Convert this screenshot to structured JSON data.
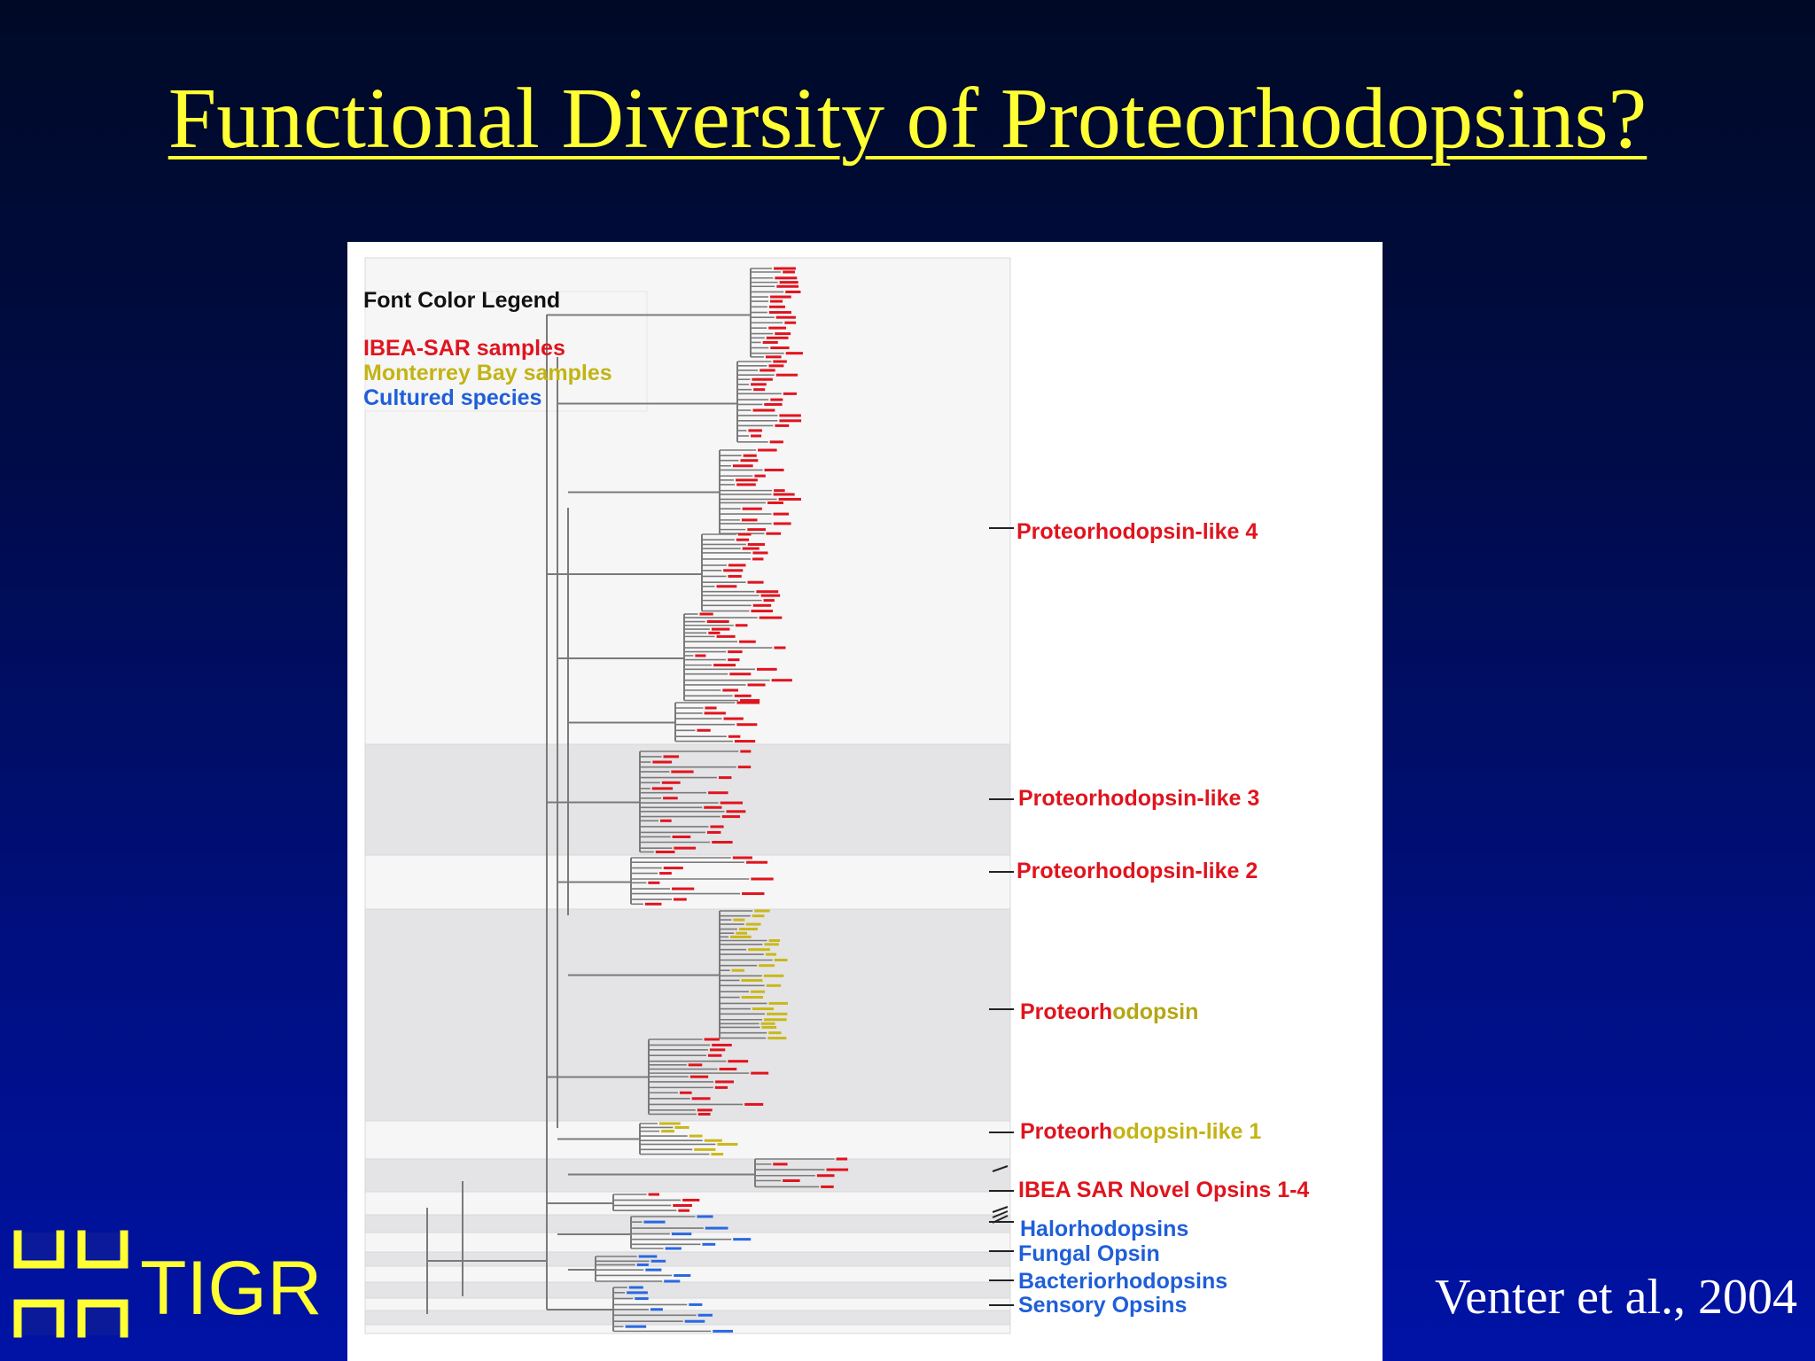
{
  "slide": {
    "title": "Functional Diversity of Proteorhodopsins?",
    "citation": "Venter et al., 2004",
    "logo_text": "TIGR"
  },
  "legend": {
    "title": "Font Color Legend",
    "items": [
      {
        "label": "IBEA-SAR samples",
        "color": "#e0141e"
      },
      {
        "label": "Monterrey Bay samples",
        "color": "#c2b414"
      },
      {
        "label": "Cultured species",
        "color": "#1f5fd8"
      }
    ]
  },
  "clades": [
    {
      "id": "pr-like-4",
      "parts": [
        {
          "text": "Proteorhodopsin-like 4",
          "color": "#e0141e"
        }
      ]
    },
    {
      "id": "pr-like-3",
      "parts": [
        {
          "text": "Proteorhodopsin-like 3",
          "color": "#e0141e"
        }
      ]
    },
    {
      "id": "pr-like-2",
      "parts": [
        {
          "text": "Proteorhodopsin-like 2",
          "color": "#e0141e"
        }
      ]
    },
    {
      "id": "proteorhodopsin",
      "parts": [
        {
          "text": "Proteorh",
          "color": "#e0141e"
        },
        {
          "text": "odopsin",
          "color": "#b5a614"
        }
      ]
    },
    {
      "id": "pr-like-1",
      "parts": [
        {
          "text": "Proteorh",
          "color": "#e0141e"
        },
        {
          "text": "odopsin-like 1",
          "color": "#c2b414"
        }
      ]
    },
    {
      "id": "novel-opsins",
      "parts": [
        {
          "text": "IBEA SAR Novel Opsins 1-4",
          "color": "#e0141e"
        }
      ]
    },
    {
      "id": "halorhodopsins",
      "parts": [
        {
          "text": "Halorhodopsins",
          "color": "#1f5fd8"
        }
      ]
    },
    {
      "id": "fungal-opsin",
      "parts": [
        {
          "text": "Fungal Opsin",
          "color": "#1f5fd8"
        }
      ]
    },
    {
      "id": "bacteriorhodopsins",
      "parts": [
        {
          "text": "Bacteriorhodopsins",
          "color": "#1f5fd8"
        }
      ]
    },
    {
      "id": "sensory-opsins",
      "parts": [
        {
          "text": "Sensory Opsins",
          "color": "#1f5fd8"
        }
      ]
    }
  ],
  "colors": {
    "title": "#ffff33",
    "branch": "#7a7a7a",
    "band_light": "#f6f6f7",
    "band_dark": "#e4e4e6"
  }
}
